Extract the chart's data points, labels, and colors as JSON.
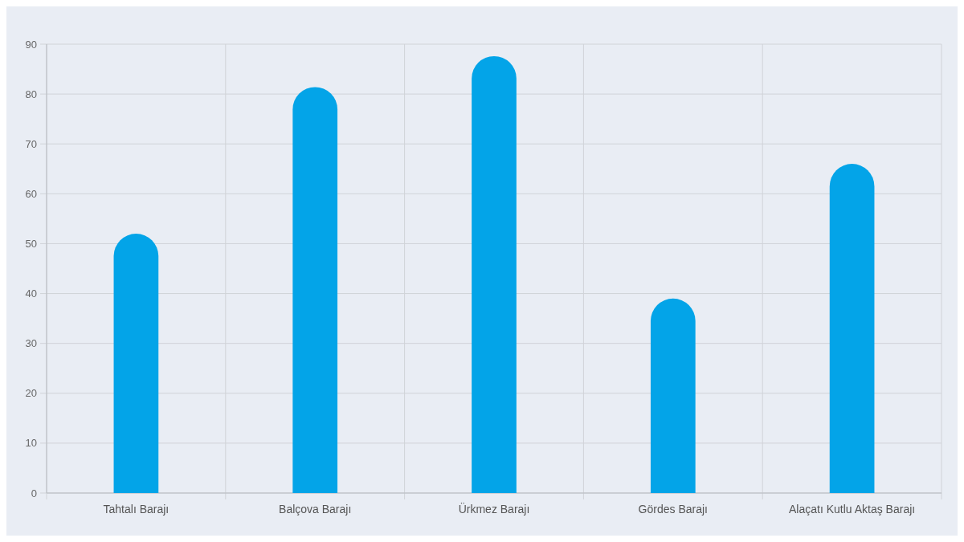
{
  "chart_data": {
    "type": "bar",
    "categories": [
      "Tahtalı Barajı",
      "Balçova Barajı",
      "Ürkmez Barajı",
      "Gördes Barajı",
      "Alaçatı Kutlu Aktaş Barajı"
    ],
    "values": [
      52,
      81.4,
      87.6,
      39,
      66
    ],
    "color": "#03a4e8",
    "ylim": [
      0,
      90
    ],
    "yticks": [
      0,
      10,
      20,
      30,
      40,
      50,
      60,
      70,
      80,
      90
    ],
    "grid": true
  }
}
